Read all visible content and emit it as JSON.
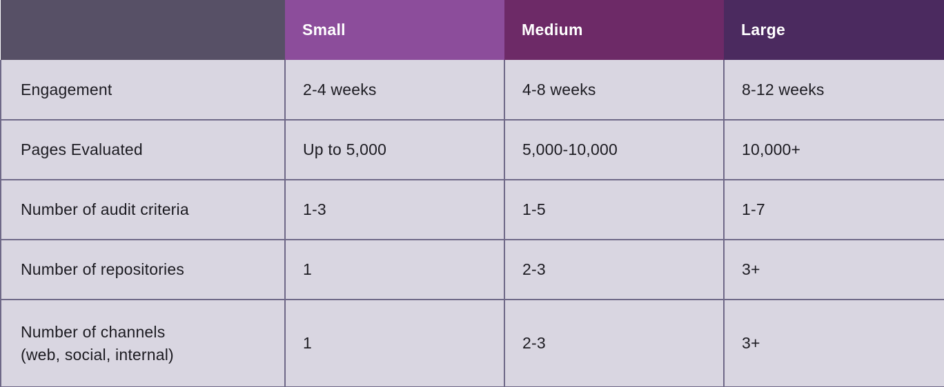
{
  "chart_data": {
    "type": "table",
    "title": "",
    "columns": [
      "",
      "Small",
      "Medium",
      "Large"
    ],
    "rows": [
      {
        "label": "Engagement",
        "values": [
          "2-4 weeks",
          "4-8 weeks",
          "8-12 weeks"
        ]
      },
      {
        "label": "Pages Evaluated",
        "values": [
          "Up to 5,000",
          "5,000-10,000",
          "10,000+"
        ]
      },
      {
        "label": "Number of audit criteria",
        "values": [
          "1-3",
          "1-5",
          "1-7"
        ]
      },
      {
        "label": "Number of repositories",
        "values": [
          "1",
          "2-3",
          "3+"
        ]
      },
      {
        "label": "Number of channels\n(web, social, internal)",
        "values": [
          "1",
          "2-3",
          "3+"
        ]
      }
    ]
  },
  "colors": {
    "corner_header_bg": "#575066",
    "small_header_bg": "#8C4D9B",
    "medium_header_bg": "#6D2A67",
    "large_header_bg": "#4B2A5F",
    "cell_bg": "#D9D6E1",
    "border": "#6E6887",
    "header_text": "#FFFFFF",
    "body_text": "#1C1B21"
  }
}
